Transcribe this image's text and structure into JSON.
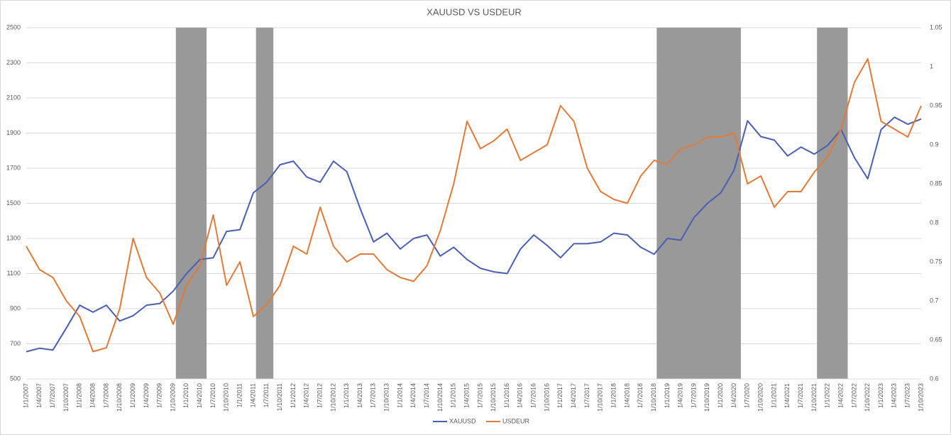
{
  "chart_data": {
    "type": "line",
    "title": "XAUUSD VS USDEUR",
    "categories": [
      "1/1/2007",
      "1/4/2007",
      "1/7/2007",
      "1/10/2007",
      "1/1/2008",
      "1/4/2008",
      "1/7/2008",
      "1/10/2008",
      "1/1/2009",
      "1/4/2009",
      "1/7/2009",
      "1/10/2009",
      "1/1/2010",
      "1/4/2010",
      "1/7/2010",
      "1/10/2010",
      "1/1/2011",
      "1/4/2011",
      "1/7/2011",
      "1/10/2011",
      "1/1/2012",
      "1/4/2012",
      "1/7/2012",
      "1/10/2012",
      "1/1/2013",
      "1/4/2013",
      "1/7/2013",
      "1/10/2013",
      "1/1/2014",
      "1/4/2014",
      "1/7/2014",
      "1/10/2014",
      "1/1/2015",
      "1/4/2015",
      "1/7/2015",
      "1/10/2015",
      "1/1/2016",
      "1/4/2016",
      "1/7/2016",
      "1/10/2016",
      "1/1/2017",
      "1/4/2017",
      "1/7/2017",
      "1/10/2017",
      "1/1/2018",
      "1/4/2018",
      "1/7/2018",
      "1/10/2018",
      "1/1/2019",
      "1/4/2019",
      "1/7/2019",
      "1/10/2019",
      "1/1/2020",
      "1/4/2020",
      "1/7/2020",
      "1/10/2020",
      "1/1/2021",
      "1/4/2021",
      "1/7/2021",
      "1/10/2021",
      "1/1/2022",
      "1/4/2022",
      "1/7/2022",
      "1/10/2022",
      "1/1/2023",
      "1/4/2023",
      "1/7/2023",
      "1/10/2023"
    ],
    "series": [
      {
        "name": "XAUUSD",
        "color": "#4a5fb3",
        "values": [
          655,
          675,
          665,
          790,
          920,
          880,
          920,
          830,
          860,
          920,
          930,
          1000,
          1100,
          1180,
          1190,
          1340,
          1350,
          1560,
          1620,
          1720,
          1740,
          1650,
          1620,
          1740,
          1680,
          1470,
          1280,
          1330,
          1240,
          1300,
          1320,
          1200,
          1250,
          1180,
          1130,
          1110,
          1100,
          1240,
          1320,
          1260,
          1190,
          1270,
          1270,
          1280,
          1330,
          1320,
          1250,
          1210,
          1300,
          1290,
          1420,
          1500,
          1560,
          1690,
          1970,
          1880,
          1860,
          1770,
          1820,
          1780,
          1830,
          1920,
          1760,
          1640,
          1920,
          1990,
          1950,
          1980
        ]
      },
      {
        "name": "USDEUR",
        "color": "#e07b39",
        "axis": "y2",
        "values": [
          0.77,
          0.74,
          0.73,
          0.7,
          0.68,
          0.635,
          0.64,
          0.69,
          0.78,
          0.73,
          0.71,
          0.67,
          0.72,
          0.745,
          0.81,
          0.72,
          0.75,
          0.68,
          0.695,
          0.72,
          0.77,
          0.76,
          0.82,
          0.77,
          0.75,
          0.76,
          0.76,
          0.74,
          0.73,
          0.725,
          0.745,
          0.79,
          0.85,
          0.93,
          0.895,
          0.905,
          0.92,
          0.88,
          0.89,
          0.9,
          0.95,
          0.93,
          0.87,
          0.84,
          0.83,
          0.825,
          0.86,
          0.88,
          0.875,
          0.895,
          0.9,
          0.91,
          0.91,
          0.915,
          0.85,
          0.86,
          0.82,
          0.84,
          0.84,
          0.865,
          0.885,
          0.92,
          0.98,
          1.01,
          0.93,
          0.92,
          0.91,
          0.95
        ]
      }
    ],
    "ylim": [
      500,
      2500
    ],
    "yticks": [
      500,
      700,
      900,
      1100,
      1300,
      1500,
      1700,
      1900,
      2100,
      2300,
      2500
    ],
    "y2lim": [
      0.6,
      1.05
    ],
    "y2ticks": [
      0.6,
      0.65,
      0.7,
      0.75,
      0.8,
      0.85,
      0.9,
      0.95,
      1,
      1.05
    ],
    "grid": true,
    "legend": "bottom",
    "shade_color": "#999999",
    "shaded": [
      {
        "from": "1/10/2009",
        "to": "1/4/2010"
      },
      {
        "from": "1/4/2011",
        "to": "1/7/2011"
      },
      {
        "from": "1/10/2018",
        "to": "1/4/2020"
      },
      {
        "from": "1/10/2021",
        "to": "1/4/2022"
      }
    ]
  }
}
